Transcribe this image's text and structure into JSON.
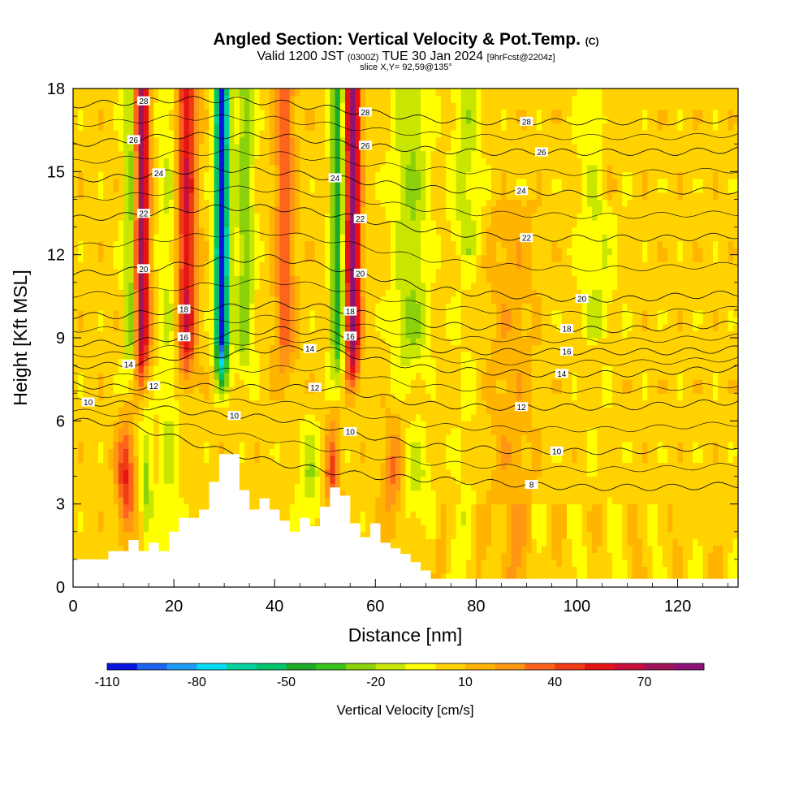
{
  "title": {
    "main": "Angled Section: Vertical Velocity & Pot.Temp.",
    "main_unit": "(C)",
    "valid_prefix": "Valid 1200 JST",
    "valid_utc": "(0300Z)",
    "valid_date": "TUE 30 Jan 2024",
    "forecast": "[9hrFcst@2204z]",
    "slice": "slice X,Y= 92,59@135°"
  },
  "chart_data": {
    "type": "heatmap",
    "xlabel": "Distance [nm]",
    "ylabel": "Height [Kft MSL]",
    "xlim": [
      0,
      132
    ],
    "ylim": [
      0,
      18
    ],
    "x_ticks": [
      "0",
      "20",
      "40",
      "60",
      "80",
      "100",
      "120"
    ],
    "x_tick_values": [
      0,
      20,
      40,
      60,
      80,
      100,
      120
    ],
    "y_ticks": [
      "0",
      "3",
      "6",
      "9",
      "12",
      "15",
      "18"
    ],
    "y_tick_values": [
      0,
      3,
      6,
      9,
      12,
      15,
      18
    ],
    "colorbar": {
      "title": "Vertical Velocity [cm/s]",
      "tick_labels": [
        "-110",
        "-80",
        "-50",
        "-20",
        "10",
        "40",
        "70"
      ],
      "tick_values": [
        -110,
        -80,
        -50,
        -20,
        10,
        40,
        70
      ],
      "levels": [
        -110,
        -100,
        -90,
        -80,
        -70,
        -60,
        -50,
        -40,
        -30,
        -20,
        -10,
        0,
        10,
        20,
        30,
        40,
        50,
        60,
        70,
        80,
        90
      ],
      "colors": [
        "#0a14e0",
        "#1e64f0",
        "#1e9bf5",
        "#00dcf5",
        "#00d2a0",
        "#00c36e",
        "#1eaa28",
        "#3cc31e",
        "#8cd20a",
        "#c8e600",
        "#ffff00",
        "#ffd200",
        "#ffb400",
        "#ff9614",
        "#ff641e",
        "#f03c14",
        "#e61414",
        "#c80f3c",
        "#a0145a",
        "#8c1478"
      ]
    },
    "terrain_profile": {
      "x": [
        0,
        4,
        7,
        11,
        13,
        15,
        17,
        19,
        21,
        23,
        25,
        27,
        29,
        31,
        33,
        35,
        37,
        39,
        41,
        43,
        45,
        47,
        49,
        51,
        53,
        55,
        57,
        59,
        61,
        63,
        65,
        67,
        69,
        71,
        73
      ],
      "height": [
        1.0,
        1.0,
        1.3,
        1.7,
        1.3,
        1.6,
        1.3,
        2.0,
        2.5,
        2.5,
        2.8,
        3.8,
        4.8,
        4.8,
        3.5,
        2.8,
        3.2,
        2.8,
        2.4,
        2.0,
        2.5,
        2.2,
        2.9,
        3.6,
        3.3,
        2.3,
        1.8,
        2.3,
        1.6,
        1.4,
        1.2,
        0.9,
        0.6,
        0.3,
        0.3
      ]
    },
    "isentropes": [
      {
        "label": "8",
        "height": [
          6.0,
          5.9,
          5.4,
          4.9,
          4.5,
          4.2,
          4.0,
          3.9,
          3.8,
          3.7,
          3.6,
          3.6,
          3.6,
          3.7
        ],
        "labels_at": [
          {
            "x": 91,
            "text": "8"
          }
        ]
      },
      {
        "label": "10",
        "height": [
          6.7,
          6.6,
          6.4,
          6.2,
          6.1,
          5.8,
          5.4,
          5.1,
          5.0,
          4.9,
          4.9,
          4.9,
          5.0,
          5.1
        ],
        "labels_at": [
          {
            "x": 3,
            "text": "10"
          },
          {
            "x": 32,
            "text": "10"
          },
          {
            "x": 55,
            "text": "10"
          },
          {
            "x": 96,
            "text": "10"
          }
        ]
      },
      {
        "label": "12",
        "height": [
          7.3,
          7.2,
          7.3,
          7.2,
          7.2,
          7.2,
          6.9,
          6.6,
          6.5,
          6.5,
          6.5,
          6.5,
          6.6,
          6.7
        ],
        "labels_at": [
          {
            "x": 16,
            "text": "12"
          },
          {
            "x": 48,
            "text": "12"
          },
          {
            "x": 89,
            "text": "12"
          }
        ]
      },
      {
        "label": "14",
        "height": [
          8.0,
          8.0,
          8.3,
          8.4,
          8.6,
          8.6,
          8.2,
          7.9,
          7.8,
          7.7,
          7.7,
          7.7,
          7.8,
          7.9
        ],
        "labels_at": [
          {
            "x": 11,
            "text": "14"
          },
          {
            "x": 47,
            "text": "14"
          },
          {
            "x": 97,
            "text": "14"
          }
        ]
      },
      {
        "label": "16",
        "height": [
          8.8,
          8.8,
          9.0,
          9.1,
          9.3,
          9.2,
          8.9,
          8.6,
          8.5,
          8.5,
          8.5,
          8.5,
          8.5,
          8.6
        ],
        "labels_at": [
          {
            "x": 22,
            "text": "16"
          },
          {
            "x": 55,
            "text": "16"
          },
          {
            "x": 98,
            "text": "16"
          }
        ]
      },
      {
        "label": "18",
        "height": [
          9.8,
          9.8,
          10.0,
          10.1,
          10.2,
          10.1,
          9.8,
          9.5,
          9.4,
          9.4,
          9.3,
          9.3,
          9.4,
          9.5
        ],
        "labels_at": [
          {
            "x": 22,
            "text": "18"
          },
          {
            "x": 55,
            "text": "18"
          },
          {
            "x": 98,
            "text": "18"
          }
        ]
      },
      {
        "label": "20",
        "height": [
          11.3,
          11.4,
          11.6,
          11.8,
          11.9,
          11.6,
          11.2,
          10.8,
          10.6,
          10.5,
          10.4,
          10.4,
          10.5,
          10.6
        ],
        "labels_at": [
          {
            "x": 14,
            "text": "20"
          },
          {
            "x": 57,
            "text": "20"
          },
          {
            "x": 101,
            "text": "20"
          }
        ]
      },
      {
        "label": "22",
        "height": [
          13.3,
          13.4,
          13.6,
          13.7,
          13.7,
          13.5,
          13.2,
          12.9,
          12.7,
          12.6,
          12.6,
          12.6,
          12.6,
          12.7
        ],
        "labels_at": [
          {
            "x": 14,
            "text": "22"
          },
          {
            "x": 57,
            "text": "22"
          },
          {
            "x": 90,
            "text": "22"
          }
        ]
      },
      {
        "label": "24",
        "height": [
          14.7,
          14.8,
          15.0,
          15.1,
          15.0,
          14.8,
          14.6,
          14.4,
          14.3,
          14.3,
          14.2,
          14.2,
          14.3,
          14.3
        ],
        "labels_at": [
          {
            "x": 17,
            "text": "24"
          },
          {
            "x": 52,
            "text": "24"
          },
          {
            "x": 89,
            "text": "24"
          }
        ]
      },
      {
        "label": "26",
        "height": [
          16.0,
          16.1,
          16.3,
          16.3,
          16.3,
          16.1,
          15.9,
          15.8,
          15.7,
          15.7,
          15.7,
          15.7,
          15.7,
          15.8
        ],
        "labels_at": [
          {
            "x": 12,
            "text": "26"
          },
          {
            "x": 58,
            "text": "26"
          },
          {
            "x": 93,
            "text": "26"
          }
        ]
      },
      {
        "label": "28",
        "height": [
          17.4,
          17.5,
          17.6,
          17.6,
          17.5,
          17.3,
          17.1,
          16.9,
          16.8,
          16.8,
          16.8,
          16.8,
          16.8,
          16.9
        ],
        "labels_at": [
          {
            "x": 14,
            "text": "28"
          },
          {
            "x": 58,
            "text": "28"
          },
          {
            "x": 90,
            "text": "28"
          }
        ]
      }
    ],
    "isentrope_x": [
      0,
      10,
      20,
      30,
      40,
      50,
      60,
      70,
      80,
      90,
      100,
      110,
      120,
      132
    ]
  }
}
